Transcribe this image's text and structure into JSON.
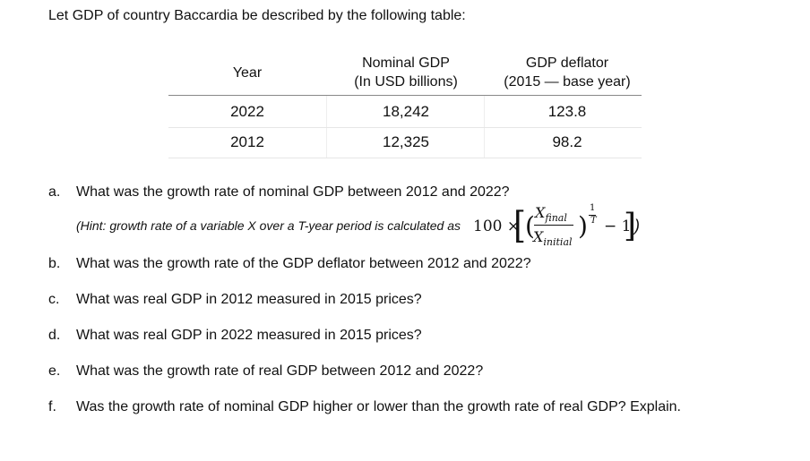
{
  "intro": "Let GDP of country Baccardia be described by the following table:",
  "table": {
    "headers": {
      "year": "Year",
      "nominal_line1": "Nominal GDP",
      "nominal_line2": "(In USD billions)",
      "deflator_line1": "GDP deflator",
      "deflator_line2": "(2015 — base year)"
    },
    "rows": [
      {
        "year": "2022",
        "nominal": "18,242",
        "deflator": "123.8"
      },
      {
        "year": "2012",
        "nominal": "12,325",
        "deflator": "98.2"
      }
    ]
  },
  "questions": {
    "a": {
      "letter": "a.",
      "text": "What was the growth rate of nominal GDP between 2012 and 2022?"
    },
    "hint": "(Hint: growth rate of a variable X over a T-year period is calculated as",
    "formula": {
      "coef": "100 ×",
      "num": "X",
      "num_sub": "final",
      "den": "X",
      "den_sub": "initial",
      "exp_num": "1",
      "exp_den": "T",
      "minus": "− 1",
      "close": ")"
    },
    "b": {
      "letter": "b.",
      "text": "What was the growth rate of the GDP deflator between 2012 and 2022?"
    },
    "c": {
      "letter": "c.",
      "text": "What was real GDP in 2012 measured in 2015 prices?"
    },
    "d": {
      "letter": "d.",
      "text": "What was real GDP in 2022 measured in 2015 prices?"
    },
    "e": {
      "letter": "e.",
      "text": "What was the growth rate of real GDP between 2012 and 2022?"
    },
    "f": {
      "letter": "f.",
      "text": "Was the growth rate of nominal GDP higher or lower than the growth rate of real GDP? Explain."
    }
  }
}
